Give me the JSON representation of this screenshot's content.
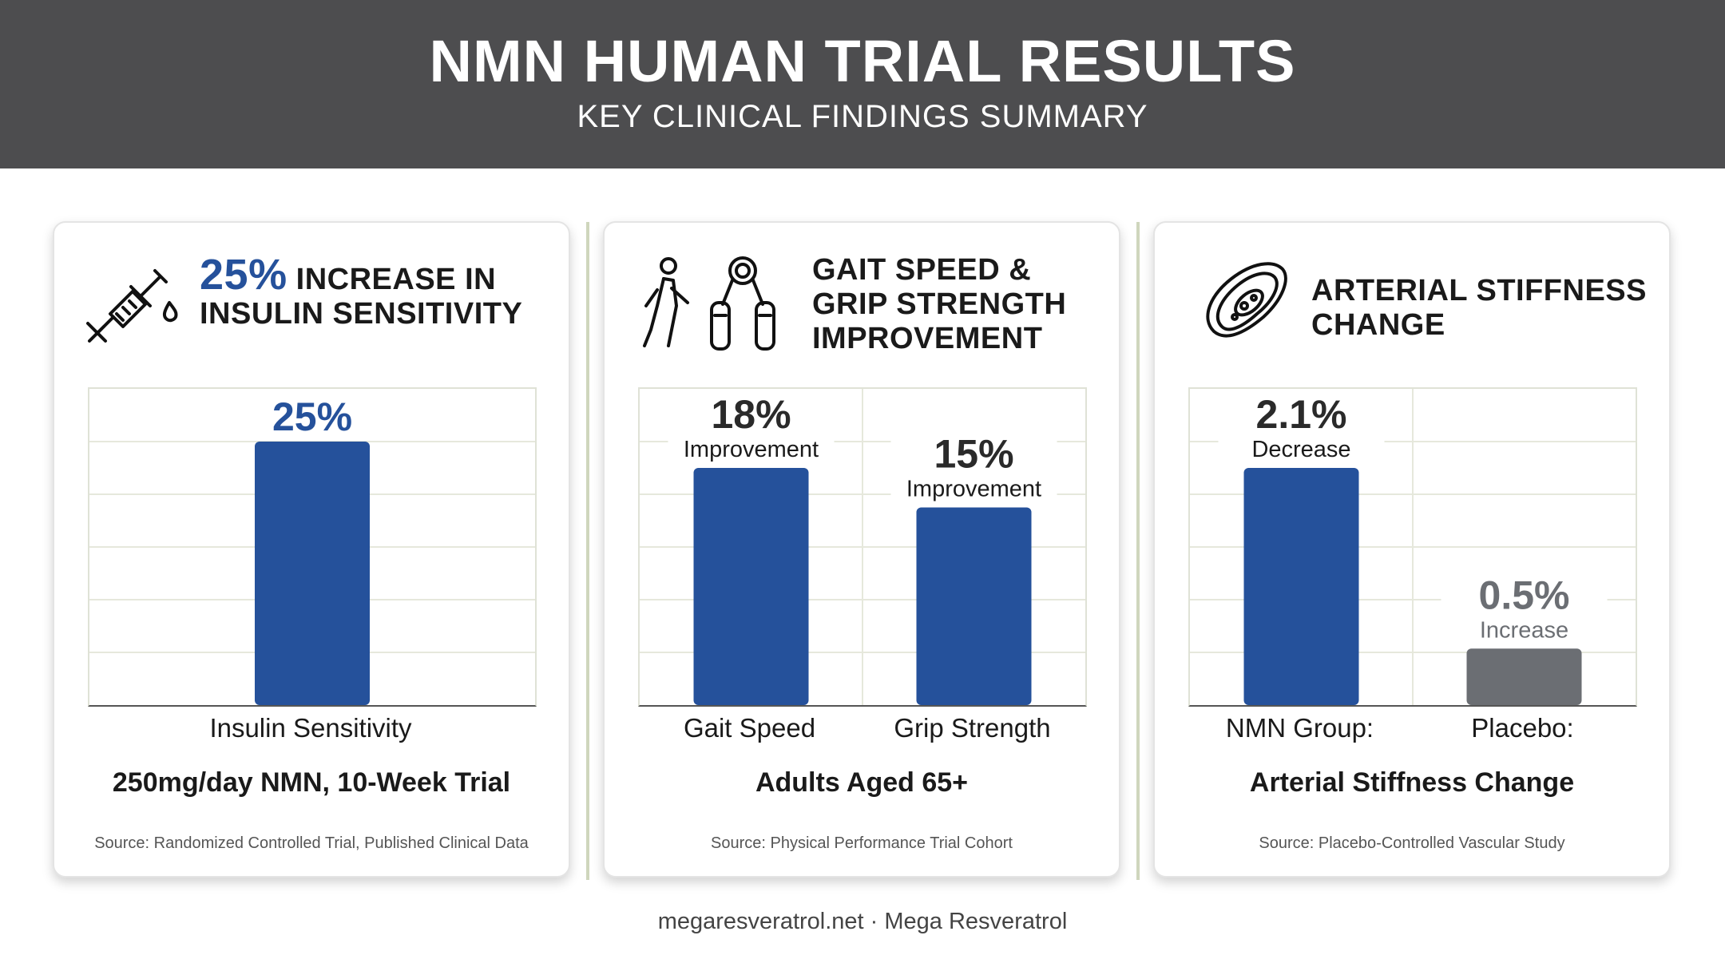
{
  "header": {
    "title": "NMN HUMAN TRIAL RESULTS",
    "subtitle": "KEY CLINICAL FINDINGS SUMMARY"
  },
  "colors": {
    "header_bg": "#4d4d4f",
    "nmn_blue": "#25519b",
    "placebo_gray": "#6b6e73"
  },
  "cards": [
    {
      "icon": "syringe-icon",
      "title_pct": "25%",
      "title_line1": "INCREASE IN",
      "title_line2": "INSULIN SENSITIVITY",
      "summary": "250mg/day NMN, 10-Week Trial",
      "source": "Source: Randomized Controlled Trial, Published Clinical Data"
    },
    {
      "icon": "walking-person-icon",
      "icon2": "hand-grip-icon",
      "title_line1": "GAIT SPEED &",
      "title_line2": "GRIP STRENGTH",
      "title_line3": "IMPROVEMENT",
      "summary": "Adults Aged 65+",
      "source": "Source: Physical Performance Trial Cohort"
    },
    {
      "icon": "artery-icon",
      "title_line1": "ARTERIAL STIFFNESS",
      "title_line2": "CHANGE",
      "summary": "Arterial Stiffness Change",
      "source": "Source: Placebo-Controlled Vascular Study"
    }
  ],
  "chart_data": [
    {
      "type": "bar",
      "categories": [
        "Insulin Sensitivity"
      ],
      "values": [
        25
      ],
      "value_labels": [
        "25%"
      ],
      "sub_labels": [
        ""
      ],
      "colors": [
        "#25519b"
      ],
      "ylim": [
        0,
        30
      ],
      "grid": true
    },
    {
      "type": "bar",
      "categories": [
        "Gait Speed",
        "Grip Strength"
      ],
      "values": [
        18,
        15
      ],
      "value_labels": [
        "18%",
        "15%"
      ],
      "sub_labels": [
        "Improvement",
        "Improvement"
      ],
      "colors": [
        "#25519b",
        "#25519b"
      ],
      "ylim": [
        0,
        24
      ],
      "grid": true
    },
    {
      "type": "bar",
      "categories": [
        "NMN Group:",
        "Placebo:"
      ],
      "values": [
        2.1,
        0.5
      ],
      "value_labels": [
        "2.1%",
        "0.5%"
      ],
      "sub_labels": [
        "Decrease",
        "Increase"
      ],
      "colors": [
        "#25519b",
        "#6b6e73"
      ],
      "ylim": [
        0,
        2.8
      ],
      "grid": true
    }
  ],
  "footer": "megaresveratrol.net · Mega Resveratrol"
}
